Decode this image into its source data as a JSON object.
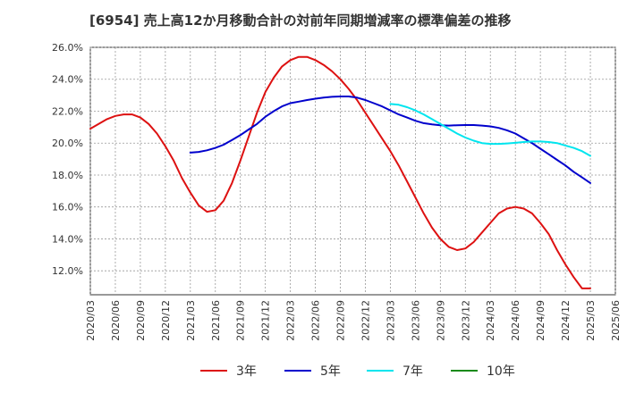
{
  "chart_data": {
    "type": "line",
    "title": "[6954]  売上高12か月移動合計の対前年同期増減率の標準偏差の推移",
    "xlabel": "",
    "ylabel": "",
    "ylim": [
      10.5,
      26.0
    ],
    "y_ticks": [
      "12.0%",
      "14.0%",
      "16.0%",
      "18.0%",
      "20.0%",
      "22.0%",
      "24.0%",
      "26.0%"
    ],
    "y_tick_values": [
      12,
      14,
      16,
      18,
      20,
      22,
      24,
      26
    ],
    "x_ticks": [
      "2020/03",
      "2020/06",
      "2020/09",
      "2020/12",
      "2021/03",
      "2021/06",
      "2021/09",
      "2021/12",
      "2022/03",
      "2022/06",
      "2022/09",
      "2022/12",
      "2023/03",
      "2023/06",
      "2023/09",
      "2023/12",
      "2024/03",
      "2024/06",
      "2024/09",
      "2024/12",
      "2025/03",
      "2025/06"
    ],
    "grid": true,
    "legend_position": "bottom",
    "series": [
      {
        "name": "3年",
        "color": "#dd1111",
        "x": [
          "2020/03",
          "2020/04",
          "2020/05",
          "2020/06",
          "2020/07",
          "2020/08",
          "2020/09",
          "2020/10",
          "2020/11",
          "2020/12",
          "2021/01",
          "2021/02",
          "2021/03",
          "2021/04",
          "2021/05",
          "2021/06",
          "2021/07",
          "2021/08",
          "2021/09",
          "2021/10",
          "2021/11",
          "2021/12",
          "2022/01",
          "2022/02",
          "2022/03",
          "2022/04",
          "2022/05",
          "2022/06",
          "2022/07",
          "2022/08",
          "2022/09",
          "2022/10",
          "2022/11",
          "2022/12",
          "2023/01",
          "2023/02",
          "2023/03",
          "2023/04",
          "2023/05",
          "2023/06",
          "2023/07",
          "2023/08",
          "2023/09",
          "2023/10",
          "2023/11",
          "2023/12",
          "2024/01",
          "2024/02",
          "2024/03",
          "2024/04",
          "2024/05",
          "2024/06",
          "2024/07",
          "2024/08",
          "2024/09",
          "2024/10",
          "2024/11",
          "2024/12",
          "2025/01",
          "2025/02",
          "2025/03"
        ],
        "values": [
          20.9,
          21.2,
          21.5,
          21.7,
          21.8,
          21.8,
          21.6,
          21.2,
          20.6,
          19.8,
          18.9,
          17.8,
          16.9,
          16.1,
          15.7,
          15.8,
          16.4,
          17.5,
          18.9,
          20.4,
          21.9,
          23.2,
          24.1,
          24.8,
          25.2,
          25.4,
          25.4,
          25.2,
          24.9,
          24.5,
          24.0,
          23.4,
          22.7,
          21.9,
          21.1,
          20.3,
          19.5,
          18.6,
          17.6,
          16.6,
          15.6,
          14.7,
          14.0,
          13.5,
          13.3,
          13.4,
          13.8,
          14.4,
          15.0,
          15.6,
          15.9,
          16.0,
          15.9,
          15.6,
          15.0,
          14.3,
          13.3,
          12.4,
          11.6,
          10.9,
          10.9
        ]
      },
      {
        "name": "5年",
        "color": "#0000cc",
        "x": [
          "2021/03",
          "2021/04",
          "2021/05",
          "2021/06",
          "2021/07",
          "2021/08",
          "2021/09",
          "2021/10",
          "2021/11",
          "2021/12",
          "2022/01",
          "2022/02",
          "2022/03",
          "2022/04",
          "2022/05",
          "2022/06",
          "2022/07",
          "2022/08",
          "2022/09",
          "2022/10",
          "2022/11",
          "2022/12",
          "2023/01",
          "2023/02",
          "2023/03",
          "2023/04",
          "2023/05",
          "2023/06",
          "2023/07",
          "2023/08",
          "2023/09",
          "2023/10",
          "2023/11",
          "2023/12",
          "2024/01",
          "2024/02",
          "2024/03",
          "2024/04",
          "2024/05",
          "2024/06",
          "2024/07",
          "2024/08",
          "2024/09",
          "2024/10",
          "2024/11",
          "2024/12",
          "2025/01",
          "2025/02",
          "2025/03"
        ],
        "values": [
          19.4,
          19.45,
          19.55,
          19.7,
          19.9,
          20.2,
          20.5,
          20.85,
          21.2,
          21.65,
          22.0,
          22.3,
          22.5,
          22.6,
          22.7,
          22.78,
          22.85,
          22.9,
          22.92,
          22.92,
          22.85,
          22.7,
          22.5,
          22.3,
          22.05,
          21.8,
          21.6,
          21.4,
          21.25,
          21.17,
          21.12,
          21.1,
          21.12,
          21.13,
          21.13,
          21.1,
          21.05,
          20.95,
          20.8,
          20.6,
          20.3,
          20.0,
          19.65,
          19.3,
          18.95,
          18.6,
          18.2,
          17.85,
          17.5
        ]
      },
      {
        "name": "7年",
        "color": "#00e5ee",
        "x": [
          "2023/03",
          "2023/04",
          "2023/05",
          "2023/06",
          "2023/07",
          "2023/08",
          "2023/09",
          "2023/10",
          "2023/11",
          "2023/12",
          "2024/01",
          "2024/02",
          "2024/03",
          "2024/04",
          "2024/05",
          "2024/06",
          "2024/07",
          "2024/08",
          "2024/09",
          "2024/10",
          "2024/11",
          "2024/12",
          "2025/01",
          "2025/02",
          "2025/03"
        ],
        "values": [
          22.45,
          22.4,
          22.25,
          22.05,
          21.8,
          21.5,
          21.2,
          20.9,
          20.6,
          20.35,
          20.15,
          20.0,
          19.95,
          19.95,
          19.98,
          20.02,
          20.07,
          20.1,
          20.1,
          20.07,
          20.0,
          19.85,
          19.7,
          19.5,
          19.2
        ]
      },
      {
        "name": "10年",
        "color": "#1a8a1a",
        "x": [],
        "values": []
      }
    ]
  }
}
